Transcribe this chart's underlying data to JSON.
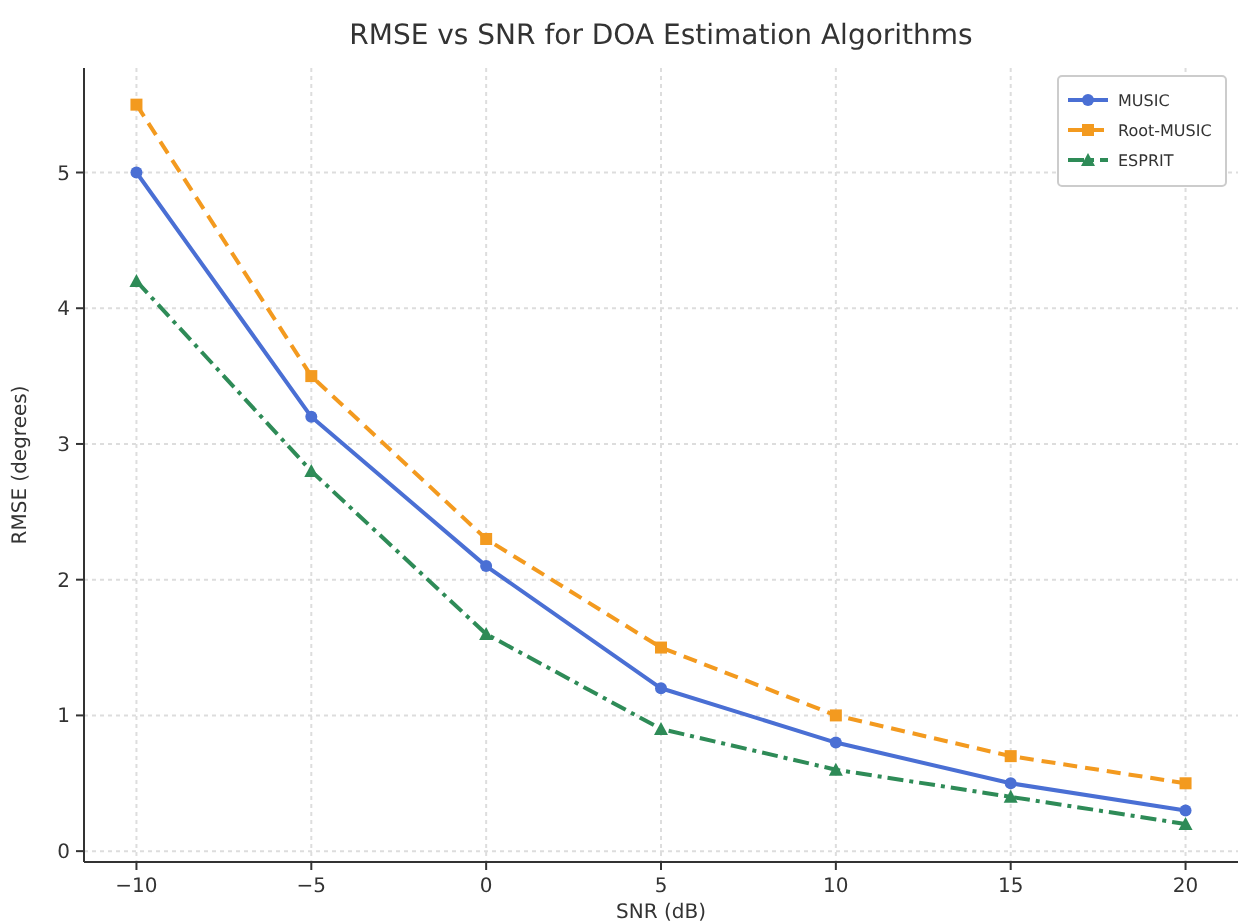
{
  "chart_data": {
    "type": "line",
    "title": "RMSE vs SNR for DOA Estimation Algorithms",
    "xlabel": "SNR (dB)",
    "ylabel": "RMSE (degrees)",
    "x": [
      -10,
      -5,
      0,
      5,
      10,
      15,
      20
    ],
    "series": [
      {
        "name": "MUSIC",
        "color": "#4a6fd4",
        "values": [
          5,
          3.2,
          2.1,
          1.2,
          0.8,
          0.5,
          0.3
        ],
        "marker": "circle",
        "line_style": "solid"
      },
      {
        "name": "Root-MUSIC",
        "color": "#f39a1f",
        "values": [
          5.5,
          3.5,
          2.3,
          1.5,
          1.0,
          0.7,
          0.5
        ],
        "marker": "square",
        "line_style": "dashed"
      },
      {
        "name": "ESPRIT",
        "color": "#2e8b57",
        "values": [
          4.2,
          2.8,
          1.6,
          0.9,
          0.6,
          0.4,
          0.2
        ],
        "marker": "triangle",
        "line_style": "dashdot"
      }
    ],
    "xlim": [
      -11.5,
      21.5
    ],
    "xticks": [
      -10,
      -5,
      0,
      5,
      10,
      15,
      20
    ],
    "ylim": [
      -0.08,
      5.77
    ],
    "yticks": [
      0,
      1,
      2,
      3,
      4,
      5
    ],
    "grid": true,
    "legend": "top right"
  }
}
